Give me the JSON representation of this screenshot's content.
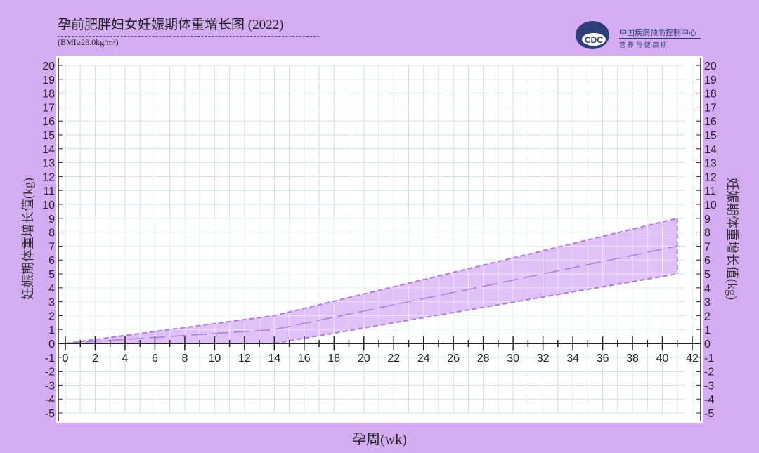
{
  "header": {
    "title": "孕前肥胖妇女妊娠期体重增长图 (2022)",
    "subtitle": "(BMI≥28.0kg/m²)"
  },
  "logo": {
    "name": "中国疾病预防控制中心",
    "sub": "营 养 与 健 康 所",
    "mark": "CDC"
  },
  "colors": {
    "background": "#d4acf2",
    "band": "#d9b6f7",
    "line": "#b07be0",
    "grid": "#cfe0e6"
  },
  "chart_data": {
    "type": "area",
    "title": "孕前肥胖妇女妊娠期体重增长图 (2022)",
    "xlabel": "孕周(wk)",
    "ylabel": "妊娠期体重增长值(kg)",
    "xlim": [
      0,
      42
    ],
    "ylim": [
      -5,
      20
    ],
    "xticks": [
      0,
      2,
      4,
      6,
      8,
      10,
      12,
      14,
      16,
      18,
      20,
      22,
      24,
      26,
      28,
      30,
      32,
      34,
      36,
      38,
      40,
      42
    ],
    "yticks": [
      -5,
      -4,
      -3,
      -2,
      -1,
      0,
      1,
      2,
      3,
      4,
      5,
      6,
      7,
      8,
      9,
      10,
      11,
      12,
      13,
      14,
      15,
      16,
      17,
      18,
      19,
      20
    ],
    "grid": true,
    "series": [
      {
        "role": "upper",
        "x": [
          0,
          14,
          41
        ],
        "y": [
          0,
          2,
          9
        ]
      },
      {
        "role": "median",
        "x": [
          0,
          14,
          41
        ],
        "y": [
          0,
          1,
          7
        ]
      },
      {
        "role": "lower",
        "x": [
          0,
          14,
          41
        ],
        "y": [
          0,
          0,
          5
        ]
      }
    ]
  }
}
